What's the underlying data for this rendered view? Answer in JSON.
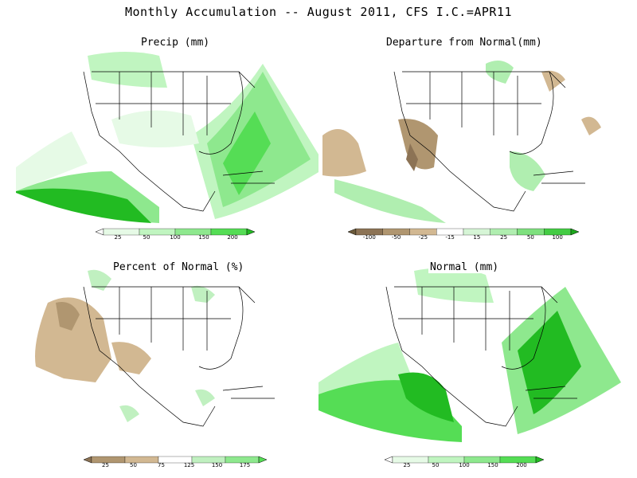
{
  "title": "Monthly Accumulation -- August 2011, CFS I.C.=APR11",
  "panels": [
    {
      "title": "Precip (mm)",
      "legend": {
        "colors": [
          "#ffffff",
          "#e6fae6",
          "#c0f5c0",
          "#8ee88e",
          "#55dd55",
          "#22bb22"
        ],
        "labels": [
          "25",
          "50",
          "100",
          "150",
          "200"
        ]
      }
    },
    {
      "title": "Departure from Normal(mm)",
      "legend": {
        "colors": [
          "#6b5a3a",
          "#8c7355",
          "#b09670",
          "#d2b892",
          "#ffffff",
          "#d6f5d6",
          "#b0eeb0",
          "#7ee07e",
          "#44cc44",
          "#1ca61c"
        ],
        "labels": [
          "-100",
          "-50",
          "-25",
          "-15",
          "15",
          "25",
          "50",
          "100"
        ]
      }
    },
    {
      "title": "Percent of Normal (%)",
      "legend": {
        "colors": [
          "#8c7355",
          "#b09670",
          "#d2b892",
          "#ffffff",
          "#c0f0c0",
          "#8ee88e",
          "#55dd55"
        ],
        "labels": [
          "25",
          "50",
          "75",
          "125",
          "150",
          "175"
        ]
      }
    },
    {
      "title": "Normal (mm)",
      "legend": {
        "colors": [
          "#ffffff",
          "#e6fae6",
          "#c0f5c0",
          "#8ee88e",
          "#55dd55",
          "#22bb22"
        ],
        "labels": [
          "25",
          "50",
          "100",
          "150",
          "200"
        ]
      }
    }
  ]
}
